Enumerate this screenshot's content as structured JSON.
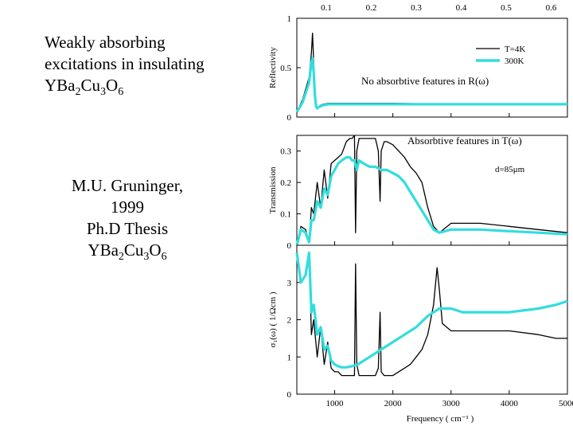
{
  "slide": {
    "title_lines": [
      "Weakly absorbing",
      "excitations in insulating"
    ],
    "title_formula": {
      "parts": [
        "YBa",
        "2",
        "Cu",
        "3",
        "O",
        "6"
      ]
    },
    "citation_lines": [
      "M.U. Gruninger,",
      "1999",
      "Ph.D Thesis"
    ],
    "citation_formula": {
      "parts": [
        "YBa",
        "2",
        "Cu",
        "3",
        "O",
        "6"
      ]
    }
  },
  "chart_data": [
    {
      "type": "line",
      "panel": "reflectivity",
      "ylabel": "Reflectivity",
      "xlim": [
        350,
        5000
      ],
      "ylim": [
        0,
        1
      ],
      "yticks": [
        "0",
        "0.5",
        "1"
      ],
      "top_axis_ticks": [
        "0.1",
        "0.2",
        "0.3",
        "0.4",
        "0.5",
        "0.6"
      ],
      "annotation": "No absorbtive features in R(ω)",
      "legend": {
        "position": "top-right",
        "entries": [
          "T=4K",
          "300K"
        ]
      },
      "series": [
        {
          "name": "T=4K",
          "color": "#000000",
          "x": [
            350,
            450,
            560,
            600,
            620,
            640,
            660,
            680,
            700,
            720,
            760,
            800,
            900,
            1000,
            1500,
            2000,
            3000,
            4000,
            5000
          ],
          "y": [
            0.05,
            0.18,
            0.4,
            0.65,
            0.85,
            0.55,
            0.25,
            0.12,
            0.08,
            0.1,
            0.12,
            0.13,
            0.14,
            0.14,
            0.14,
            0.14,
            0.13,
            0.13,
            0.13
          ]
        },
        {
          "name": "300K",
          "color": "#33dddd",
          "x": [
            350,
            450,
            560,
            600,
            620,
            640,
            660,
            680,
            700,
            720,
            760,
            800,
            900,
            1000,
            1500,
            2000,
            3000,
            4000,
            5000
          ],
          "y": [
            0.05,
            0.15,
            0.35,
            0.55,
            0.6,
            0.45,
            0.22,
            0.11,
            0.09,
            0.1,
            0.11,
            0.12,
            0.13,
            0.13,
            0.13,
            0.13,
            0.13,
            0.13,
            0.13
          ]
        }
      ]
    },
    {
      "type": "line",
      "panel": "transmission",
      "ylabel": "Transmission",
      "xlim": [
        350,
        5000
      ],
      "ylim": [
        0,
        0.35
      ],
      "yticks": [
        "0",
        "0.1",
        "0.2",
        "0.3"
      ],
      "annotation": "Absorbtive features in T(ω)",
      "thickness_label": "d=85μm",
      "series": [
        {
          "name": "T=4K",
          "color": "#000000",
          "x": [
            350,
            420,
            500,
            560,
            600,
            640,
            700,
            760,
            820,
            880,
            940,
            1000,
            1060,
            1120,
            1200,
            1260,
            1300,
            1340,
            1360,
            1380,
            1420,
            1500,
            1600,
            1700,
            1750,
            1780,
            1800,
            1850,
            1900,
            2000,
            2100,
            2200,
            2300,
            2400,
            2500,
            2600,
            2700,
            2800,
            3000,
            3200,
            3500,
            4000,
            4500,
            5000
          ],
          "y": [
            0.0,
            0.06,
            0.05,
            0.01,
            0.12,
            0.1,
            0.2,
            0.12,
            0.24,
            0.15,
            0.26,
            0.27,
            0.28,
            0.29,
            0.33,
            0.34,
            0.34,
            0.35,
            0.04,
            0.3,
            0.34,
            0.34,
            0.34,
            0.34,
            0.3,
            0.14,
            0.3,
            0.33,
            0.33,
            0.32,
            0.3,
            0.28,
            0.25,
            0.23,
            0.2,
            0.12,
            0.06,
            0.04,
            0.07,
            0.07,
            0.07,
            0.06,
            0.05,
            0.04
          ]
        },
        {
          "name": "300K",
          "color": "#33dddd",
          "x": [
            350,
            420,
            500,
            560,
            600,
            640,
            700,
            760,
            820,
            880,
            940,
            1000,
            1060,
            1120,
            1200,
            1260,
            1300,
            1340,
            1380,
            1420,
            1500,
            1600,
            1700,
            1800,
            1900,
            2000,
            2100,
            2200,
            2300,
            2400,
            2500,
            2600,
            2700,
            2800,
            3000,
            3200,
            3500,
            4000,
            4500,
            5000
          ],
          "y": [
            0.0,
            0.05,
            0.04,
            0.01,
            0.08,
            0.08,
            0.14,
            0.12,
            0.18,
            0.16,
            0.22,
            0.24,
            0.26,
            0.27,
            0.28,
            0.28,
            0.27,
            0.27,
            0.24,
            0.27,
            0.26,
            0.25,
            0.25,
            0.24,
            0.24,
            0.23,
            0.22,
            0.2,
            0.17,
            0.14,
            0.11,
            0.08,
            0.05,
            0.04,
            0.05,
            0.05,
            0.05,
            0.045,
            0.04,
            0.035
          ]
        }
      ]
    },
    {
      "type": "line",
      "panel": "conductivity",
      "ylabel": "σ₁(ω) ( 1/Ωcm )",
      "xlabel": "Frequency ( cm⁻¹ )",
      "xlim": [
        350,
        5000
      ],
      "ylim": [
        0,
        4
      ],
      "yticks": [
        "0",
        "1",
        "2",
        "3"
      ],
      "xticks": [
        "1000",
        "2000",
        "3000",
        "4000",
        "5000"
      ],
      "series": [
        {
          "name": "T=4K",
          "color": "#000000",
          "x": [
            350,
            420,
            500,
            560,
            600,
            640,
            700,
            760,
            820,
            880,
            940,
            1000,
            1060,
            1120,
            1200,
            1260,
            1300,
            1340,
            1360,
            1380,
            1420,
            1500,
            1600,
            1700,
            1750,
            1780,
            1800,
            1850,
            1900,
            2000,
            2100,
            2200,
            2300,
            2400,
            2500,
            2600,
            2700,
            2760,
            2800,
            2850,
            3000,
            3200,
            3500,
            4000,
            4500,
            4800,
            5000
          ],
          "y": [
            3.8,
            3.0,
            3.2,
            3.8,
            1.6,
            2.0,
            1.0,
            1.8,
            0.8,
            1.4,
            0.7,
            0.6,
            0.6,
            0.5,
            0.5,
            0.5,
            0.5,
            0.5,
            3.5,
            0.8,
            0.5,
            0.5,
            0.5,
            0.5,
            0.7,
            2.2,
            0.6,
            0.5,
            0.5,
            0.5,
            0.6,
            0.7,
            0.8,
            1.0,
            1.2,
            1.6,
            2.4,
            3.4,
            2.8,
            1.9,
            1.7,
            1.7,
            1.7,
            1.7,
            1.6,
            1.5,
            1.5
          ]
        },
        {
          "name": "300K",
          "color": "#33dddd",
          "x": [
            350,
            420,
            500,
            560,
            600,
            640,
            700,
            760,
            820,
            880,
            940,
            1000,
            1060,
            1120,
            1200,
            1300,
            1400,
            1500,
            1600,
            1800,
            2000,
            2200,
            2400,
            2600,
            2800,
            3000,
            3200,
            3500,
            4000,
            4500,
            4800,
            5000
          ],
          "y": [
            3.8,
            3.0,
            3.2,
            3.8,
            2.2,
            2.4,
            1.6,
            1.8,
            1.2,
            1.3,
            0.9,
            0.8,
            0.75,
            0.72,
            0.72,
            0.75,
            0.8,
            0.9,
            1.0,
            1.2,
            1.4,
            1.6,
            1.8,
            2.1,
            2.3,
            2.3,
            2.2,
            2.2,
            2.2,
            2.3,
            2.4,
            2.5
          ]
        }
      ]
    }
  ]
}
